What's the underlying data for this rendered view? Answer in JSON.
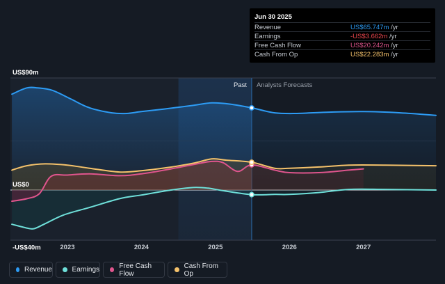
{
  "chart_data": {
    "type": "area",
    "y_unit": "US$",
    "ylim": [
      -40,
      90
    ],
    "y_tick_labels": [
      "US$90m",
      "US$0",
      "-US$40m"
    ],
    "x_tick_labels": [
      "2023",
      "2024",
      "2025",
      "2026",
      "2027"
    ],
    "x_tick_values": [
      2023,
      2024,
      2025,
      2026,
      2027
    ],
    "xlim": [
      2022.23,
      2027.98
    ],
    "past_label": "Past",
    "forecast_label": "Analysts Forecasts",
    "highlight_start": 2024.5,
    "divider_x": 2025.49,
    "series": [
      {
        "name": "Revenue",
        "color": "#2d9cf5",
        "points": [
          [
            2022.25,
            77
          ],
          [
            2022.45,
            82
          ],
          [
            2022.6,
            82
          ],
          [
            2022.8,
            80
          ],
          [
            2023.05,
            73
          ],
          [
            2023.3,
            66
          ],
          [
            2023.6,
            62
          ],
          [
            2023.8,
            61.5
          ],
          [
            2024.0,
            63
          ],
          [
            2024.3,
            65
          ],
          [
            2024.7,
            68
          ],
          [
            2024.95,
            70
          ],
          [
            2025.2,
            69
          ],
          [
            2025.49,
            66
          ],
          [
            2025.8,
            62
          ],
          [
            2026.1,
            61.5
          ],
          [
            2026.5,
            62.5
          ],
          [
            2027.0,
            63
          ],
          [
            2027.5,
            62
          ],
          [
            2027.98,
            60
          ]
        ]
      },
      {
        "name": "Earnings",
        "color": "#6fe0da",
        "points": [
          [
            2022.25,
            -27.5
          ],
          [
            2022.45,
            -30.5
          ],
          [
            2022.55,
            -31
          ],
          [
            2022.7,
            -27
          ],
          [
            2022.95,
            -20
          ],
          [
            2023.3,
            -14
          ],
          [
            2023.7,
            -7
          ],
          [
            2024.0,
            -4
          ],
          [
            2024.4,
            0
          ],
          [
            2024.7,
            2
          ],
          [
            2024.9,
            1.5
          ],
          [
            2025.1,
            -0.5
          ],
          [
            2025.49,
            -3.7
          ],
          [
            2025.8,
            -3.5
          ],
          [
            2026.0,
            -3.5
          ],
          [
            2026.4,
            -2
          ],
          [
            2026.8,
            0.5
          ],
          [
            2027.3,
            0.5
          ],
          [
            2027.98,
            0
          ]
        ]
      },
      {
        "name": "Free Cash Flow",
        "color": "#e0558d",
        "points": [
          [
            2022.25,
            -9
          ],
          [
            2022.45,
            -7
          ],
          [
            2022.62,
            -3
          ],
          [
            2022.78,
            11
          ],
          [
            2023.0,
            12
          ],
          [
            2023.3,
            13
          ],
          [
            2023.7,
            11.5
          ],
          [
            2024.0,
            13
          ],
          [
            2024.4,
            17
          ],
          [
            2024.75,
            21
          ],
          [
            2024.95,
            23
          ],
          [
            2025.1,
            22
          ],
          [
            2025.3,
            15
          ],
          [
            2025.49,
            20.2
          ],
          [
            2025.8,
            16
          ],
          [
            2026.0,
            14
          ],
          [
            2026.4,
            14
          ],
          [
            2026.8,
            16
          ],
          [
            2027.0,
            17
          ]
        ]
      },
      {
        "name": "Cash From Op",
        "color": "#f5c26b",
        "points": [
          [
            2022.25,
            16
          ],
          [
            2022.45,
            19.5
          ],
          [
            2022.7,
            21
          ],
          [
            2023.0,
            20
          ],
          [
            2023.3,
            17.5
          ],
          [
            2023.7,
            14.5
          ],
          [
            2024.0,
            15.5
          ],
          [
            2024.35,
            18
          ],
          [
            2024.7,
            21.5
          ],
          [
            2024.95,
            25
          ],
          [
            2025.15,
            24
          ],
          [
            2025.49,
            22.3
          ],
          [
            2025.8,
            17.5
          ],
          [
            2026.0,
            17.5
          ],
          [
            2026.4,
            18.5
          ],
          [
            2026.8,
            20
          ],
          [
            2027.3,
            20
          ],
          [
            2027.98,
            19.5
          ]
        ]
      }
    ],
    "tooltip": {
      "date": "Jun 30 2025",
      "rows": [
        {
          "label": "Revenue",
          "value": "US$65.747m",
          "unit": " /yr",
          "color": "#2d9cf5"
        },
        {
          "label": "Earnings",
          "value": "-US$3.662m",
          "unit": " /yr",
          "color": "#f0474e"
        },
        {
          "label": "Free Cash Flow",
          "value": "US$20.242m",
          "unit": " /yr",
          "color": "#e0558d"
        },
        {
          "label": "Cash From Op",
          "value": "US$22.283m",
          "unit": " /yr",
          "color": "#f5c26b"
        }
      ]
    },
    "legend": [
      {
        "label": "Revenue",
        "color": "#2d9cf5"
      },
      {
        "label": "Earnings",
        "color": "#6fe0da"
      },
      {
        "label": "Free Cash Flow",
        "color": "#e0558d"
      },
      {
        "label": "Cash From Op",
        "color": "#f5c26b"
      }
    ]
  }
}
